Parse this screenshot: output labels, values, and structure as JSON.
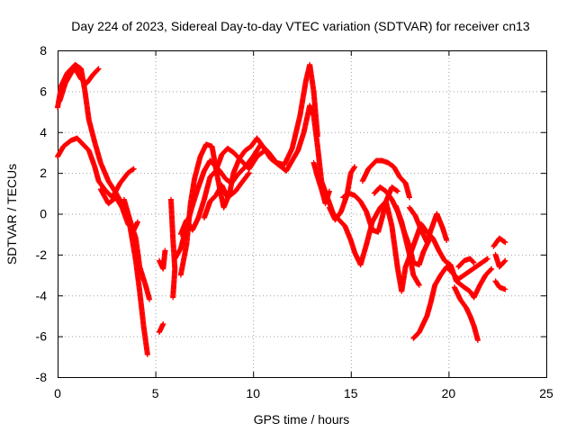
{
  "chart_data": {
    "type": "scatter",
    "title": "Day 224 of 2023, Sidereal Day-to-day VTEC variation (SDTVAR) for receiver cn13",
    "xlabel": "GPS time / hours",
    "ylabel": "SDTVAR / TECUs",
    "xlim": [
      0,
      25
    ],
    "ylim": [
      -8,
      8
    ],
    "xticks": [
      0,
      5,
      10,
      15,
      20,
      25
    ],
    "yticks": [
      -8,
      -6,
      -4,
      -2,
      0,
      2,
      4,
      6,
      8
    ],
    "grid": true,
    "marker": "plus",
    "color": "#ff0000",
    "series": [
      {
        "tracks": [
          [
            [
              0.0,
              5.2
            ],
            [
              0.2,
              6.3
            ],
            [
              0.5,
              6.9
            ],
            [
              0.9,
              7.3
            ],
            [
              1.2,
              7.1
            ],
            [
              1.4,
              6.0
            ],
            [
              1.6,
              4.6
            ],
            [
              1.9,
              3.5
            ],
            [
              2.2,
              2.5
            ],
            [
              2.6,
              1.6
            ],
            [
              3.0,
              1.0
            ],
            [
              3.4,
              0.3
            ],
            [
              3.7,
              -0.6
            ],
            [
              4.0,
              -2.3
            ],
            [
              4.2,
              -3.8
            ],
            [
              4.4,
              -5.5
            ],
            [
              4.6,
              -6.9
            ]
          ],
          [
            [
              0.0,
              2.8
            ],
            [
              0.3,
              3.3
            ],
            [
              0.7,
              3.6
            ],
            [
              1.0,
              3.7
            ],
            [
              1.3,
              3.4
            ],
            [
              1.6,
              3.1
            ],
            [
              1.9,
              2.3
            ],
            [
              2.1,
              1.6
            ],
            [
              2.4,
              1.2
            ],
            [
              2.8,
              0.8
            ],
            [
              3.2,
              1.5
            ],
            [
              3.6,
              2.0
            ],
            [
              3.9,
              2.2
            ]
          ],
          [
            [
              0.1,
              5.5
            ],
            [
              0.4,
              6.4
            ],
            [
              0.7,
              6.9
            ],
            [
              0.9,
              7.1
            ],
            [
              1.2,
              6.6
            ],
            [
              1.5,
              6.4
            ],
            [
              1.8,
              6.8
            ],
            [
              2.1,
              7.1
            ]
          ],
          [
            [
              2.2,
              1.2
            ],
            [
              2.6,
              0.5
            ],
            [
              3.0,
              0.8
            ],
            [
              3.3,
              0.3
            ],
            [
              3.6,
              -0.5
            ],
            [
              3.9,
              -0.8
            ],
            [
              4.1,
              -0.4
            ]
          ],
          [
            [
              3.4,
              0.7
            ],
            [
              3.7,
              -0.3
            ],
            [
              4.0,
              -1.2
            ],
            [
              4.2,
              -2.6
            ],
            [
              4.5,
              -3.5
            ],
            [
              4.7,
              -4.2
            ]
          ],
          [
            [
              5.2,
              -2.3
            ],
            [
              5.4,
              -2.7
            ],
            [
              5.5,
              -1.8
            ]
          ],
          [
            [
              5.2,
              -5.8
            ],
            [
              5.4,
              -5.4
            ]
          ],
          [
            [
              5.8,
              0.7
            ],
            [
              5.9,
              -1.2
            ],
            [
              6.0,
              -2.7
            ],
            [
              5.9,
              -4.1
            ]
          ],
          [
            [
              6.3,
              -3.0
            ],
            [
              6.6,
              -1.5
            ],
            [
              6.8,
              0.5
            ],
            [
              7.0,
              1.7
            ],
            [
              7.3,
              2.8
            ],
            [
              7.6,
              3.4
            ],
            [
              7.9,
              3.3
            ],
            [
              8.1,
              2.2
            ],
            [
              8.3,
              1.2
            ],
            [
              8.5,
              0.3
            ],
            [
              8.8,
              1.0
            ],
            [
              9.0,
              2.0
            ],
            [
              9.3,
              2.7
            ],
            [
              9.6,
              3.1
            ],
            [
              9.9,
              3.3
            ],
            [
              10.2,
              3.7
            ],
            [
              10.5,
              3.3
            ],
            [
              10.9,
              2.7
            ],
            [
              11.3,
              2.4
            ],
            [
              11.7,
              2.1
            ],
            [
              12.0,
              2.6
            ],
            [
              12.3,
              3.1
            ],
            [
              12.6,
              4.0
            ],
            [
              12.9,
              5.3
            ],
            [
              13.1,
              4.8
            ],
            [
              13.3,
              3.3
            ],
            [
              13.5,
              1.6
            ],
            [
              13.8,
              0.8
            ],
            [
              14.1,
              0.0
            ],
            [
              14.4,
              -0.3
            ],
            [
              14.7,
              -0.6
            ],
            [
              15.0,
              -1.3
            ],
            [
              15.2,
              -1.9
            ],
            [
              15.5,
              -2.5
            ],
            [
              15.8,
              -1.5
            ],
            [
              16.1,
              -0.4
            ],
            [
              16.5,
              0.3
            ],
            [
              16.8,
              0.6
            ],
            [
              17.1,
              -0.6
            ],
            [
              17.4,
              -2.7
            ],
            [
              17.6,
              -3.8
            ],
            [
              17.8,
              -2.6
            ],
            [
              18.0,
              -2.1
            ],
            [
              18.3,
              -1.3
            ],
            [
              18.6,
              -0.5
            ],
            [
              18.9,
              -0.9
            ],
            [
              19.2,
              -1.2
            ],
            [
              19.5,
              -1.8
            ],
            [
              19.8,
              -2.3
            ],
            [
              20.1,
              -2.5
            ],
            [
              20.4,
              -3.3
            ],
            [
              20.8,
              -3.6
            ],
            [
              21.1,
              -3.8
            ],
            [
              21.3,
              -4.1
            ],
            [
              21.6,
              -3.5
            ],
            [
              21.9,
              -3.0
            ],
            [
              22.2,
              -2.7
            ]
          ],
          [
            [
              6.0,
              -2.2
            ],
            [
              6.3,
              -1.7
            ],
            [
              6.6,
              -0.6
            ],
            [
              6.9,
              0.4
            ],
            [
              7.2,
              1.3
            ],
            [
              7.5,
              2.1
            ],
            [
              7.8,
              2.6
            ],
            [
              8.0,
              2.4
            ],
            [
              8.3,
              2.1
            ],
            [
              8.6,
              1.7
            ],
            [
              8.9,
              1.5
            ],
            [
              9.2,
              1.9
            ],
            [
              9.6,
              2.3
            ],
            [
              10.0,
              2.8
            ],
            [
              10.4,
              3.4
            ],
            [
              10.8,
              3.0
            ],
            [
              11.2,
              2.5
            ],
            [
              11.6,
              2.4
            ],
            [
              12.0,
              3.2
            ],
            [
              12.4,
              4.8
            ],
            [
              12.7,
              6.5
            ],
            [
              12.9,
              7.3
            ],
            [
              13.1,
              6.0
            ],
            [
              13.3,
              3.8
            ]
          ],
          [
            [
              6.3,
              -1.0
            ],
            [
              6.6,
              -0.3
            ],
            [
              6.9,
              -0.8
            ],
            [
              7.2,
              -0.2
            ],
            [
              7.5,
              0.7
            ],
            [
              7.8,
              1.8
            ],
            [
              8.1,
              2.1
            ],
            [
              8.4,
              2.9
            ],
            [
              8.7,
              3.2
            ],
            [
              9.0,
              3.0
            ],
            [
              9.4,
              2.6
            ],
            [
              9.8,
              2.2
            ],
            [
              10.2,
              2.8
            ],
            [
              10.6,
              3.1
            ]
          ],
          [
            [
              7.5,
              -0.2
            ],
            [
              7.8,
              0.6
            ],
            [
              8.1,
              0.9
            ],
            [
              8.4,
              1.4
            ],
            [
              8.7,
              0.8
            ],
            [
              9.1,
              1.1
            ],
            [
              9.4,
              1.5
            ],
            [
              9.8,
              2.0
            ]
          ],
          [
            [
              13.1,
              2.5
            ],
            [
              13.3,
              1.8
            ],
            [
              13.5,
              1.2
            ],
            [
              13.7,
              0.5
            ],
            [
              13.9,
              1.1
            ]
          ],
          [
            [
              13.9,
              0.3
            ],
            [
              14.2,
              -0.3
            ],
            [
              14.5,
              0.1
            ],
            [
              14.8,
              0.9
            ],
            [
              15.0,
              2.0
            ],
            [
              15.2,
              2.3
            ]
          ],
          [
            [
              14.6,
              0.8
            ],
            [
              14.9,
              1.0
            ],
            [
              15.2,
              0.9
            ],
            [
              15.5,
              0.6
            ],
            [
              15.8,
              0.1
            ],
            [
              16.1,
              -0.8
            ],
            [
              16.4,
              -0.9
            ],
            [
              16.6,
              -0.2
            ],
            [
              16.8,
              0.6
            ],
            [
              17.1,
              1.3
            ],
            [
              17.4,
              1.1
            ]
          ],
          [
            [
              15.6,
              1.6
            ],
            [
              15.9,
              2.2
            ],
            [
              16.3,
              2.6
            ],
            [
              16.6,
              2.6
            ],
            [
              16.9,
              2.5
            ],
            [
              17.2,
              2.3
            ],
            [
              17.5,
              1.8
            ],
            [
              17.8,
              1.5
            ],
            [
              18.0,
              0.8
            ]
          ],
          [
            [
              16.2,
              1.0
            ],
            [
              16.5,
              1.3
            ],
            [
              16.8,
              1.1
            ],
            [
              17.1,
              0.7
            ],
            [
              17.4,
              0.1
            ],
            [
              17.7,
              -0.8
            ],
            [
              18.0,
              -1.6
            ],
            [
              18.2,
              -2.4
            ],
            [
              18.5,
              -2.5
            ],
            [
              18.7,
              -1.9
            ],
            [
              19.0,
              -1.3
            ]
          ],
          [
            [
              17.3,
              0.4
            ],
            [
              17.6,
              -0.4
            ],
            [
              17.8,
              -1.2
            ],
            [
              18.0,
              -2.0
            ],
            [
              18.2,
              -3.0
            ],
            [
              18.5,
              -3.5
            ]
          ],
          [
            [
              18.0,
              0.3
            ],
            [
              18.3,
              -0.1
            ],
            [
              18.6,
              -0.8
            ],
            [
              18.9,
              -1.4
            ],
            [
              19.1,
              -0.8
            ],
            [
              19.4,
              0.0
            ],
            [
              19.7,
              -0.7
            ],
            [
              19.9,
              -1.3
            ]
          ],
          [
            [
              18.2,
              -6.1
            ],
            [
              18.5,
              -5.8
            ],
            [
              18.7,
              -5.4
            ],
            [
              18.9,
              -5.0
            ],
            [
              19.1,
              -4.3
            ],
            [
              19.3,
              -3.5
            ],
            [
              19.6,
              -3.0
            ],
            [
              19.9,
              -2.6
            ],
            [
              20.2,
              -2.9
            ],
            [
              20.5,
              -3.2
            ],
            [
              20.8,
              -3.0
            ],
            [
              21.1,
              -2.8
            ],
            [
              21.4,
              -2.6
            ],
            [
              21.7,
              -2.4
            ],
            [
              22.0,
              -2.2
            ]
          ],
          [
            [
              20.3,
              -3.6
            ],
            [
              20.6,
              -4.2
            ],
            [
              20.9,
              -4.6
            ],
            [
              21.1,
              -5.0
            ],
            [
              21.3,
              -5.5
            ],
            [
              21.5,
              -6.2
            ]
          ],
          [
            [
              20.5,
              -2.6
            ],
            [
              20.8,
              -2.3
            ],
            [
              21.1,
              -2.2
            ],
            [
              21.3,
              -2.4
            ]
          ],
          [
            [
              22.3,
              -1.6
            ],
            [
              22.6,
              -1.2
            ],
            [
              22.9,
              -1.4
            ]
          ],
          [
            [
              22.4,
              -2.0
            ],
            [
              22.6,
              -2.6
            ],
            [
              22.9,
              -2.3
            ]
          ],
          [
            [
              22.4,
              -3.3
            ],
            [
              22.6,
              -3.6
            ],
            [
              22.9,
              -3.7
            ]
          ]
        ]
      }
    ]
  }
}
